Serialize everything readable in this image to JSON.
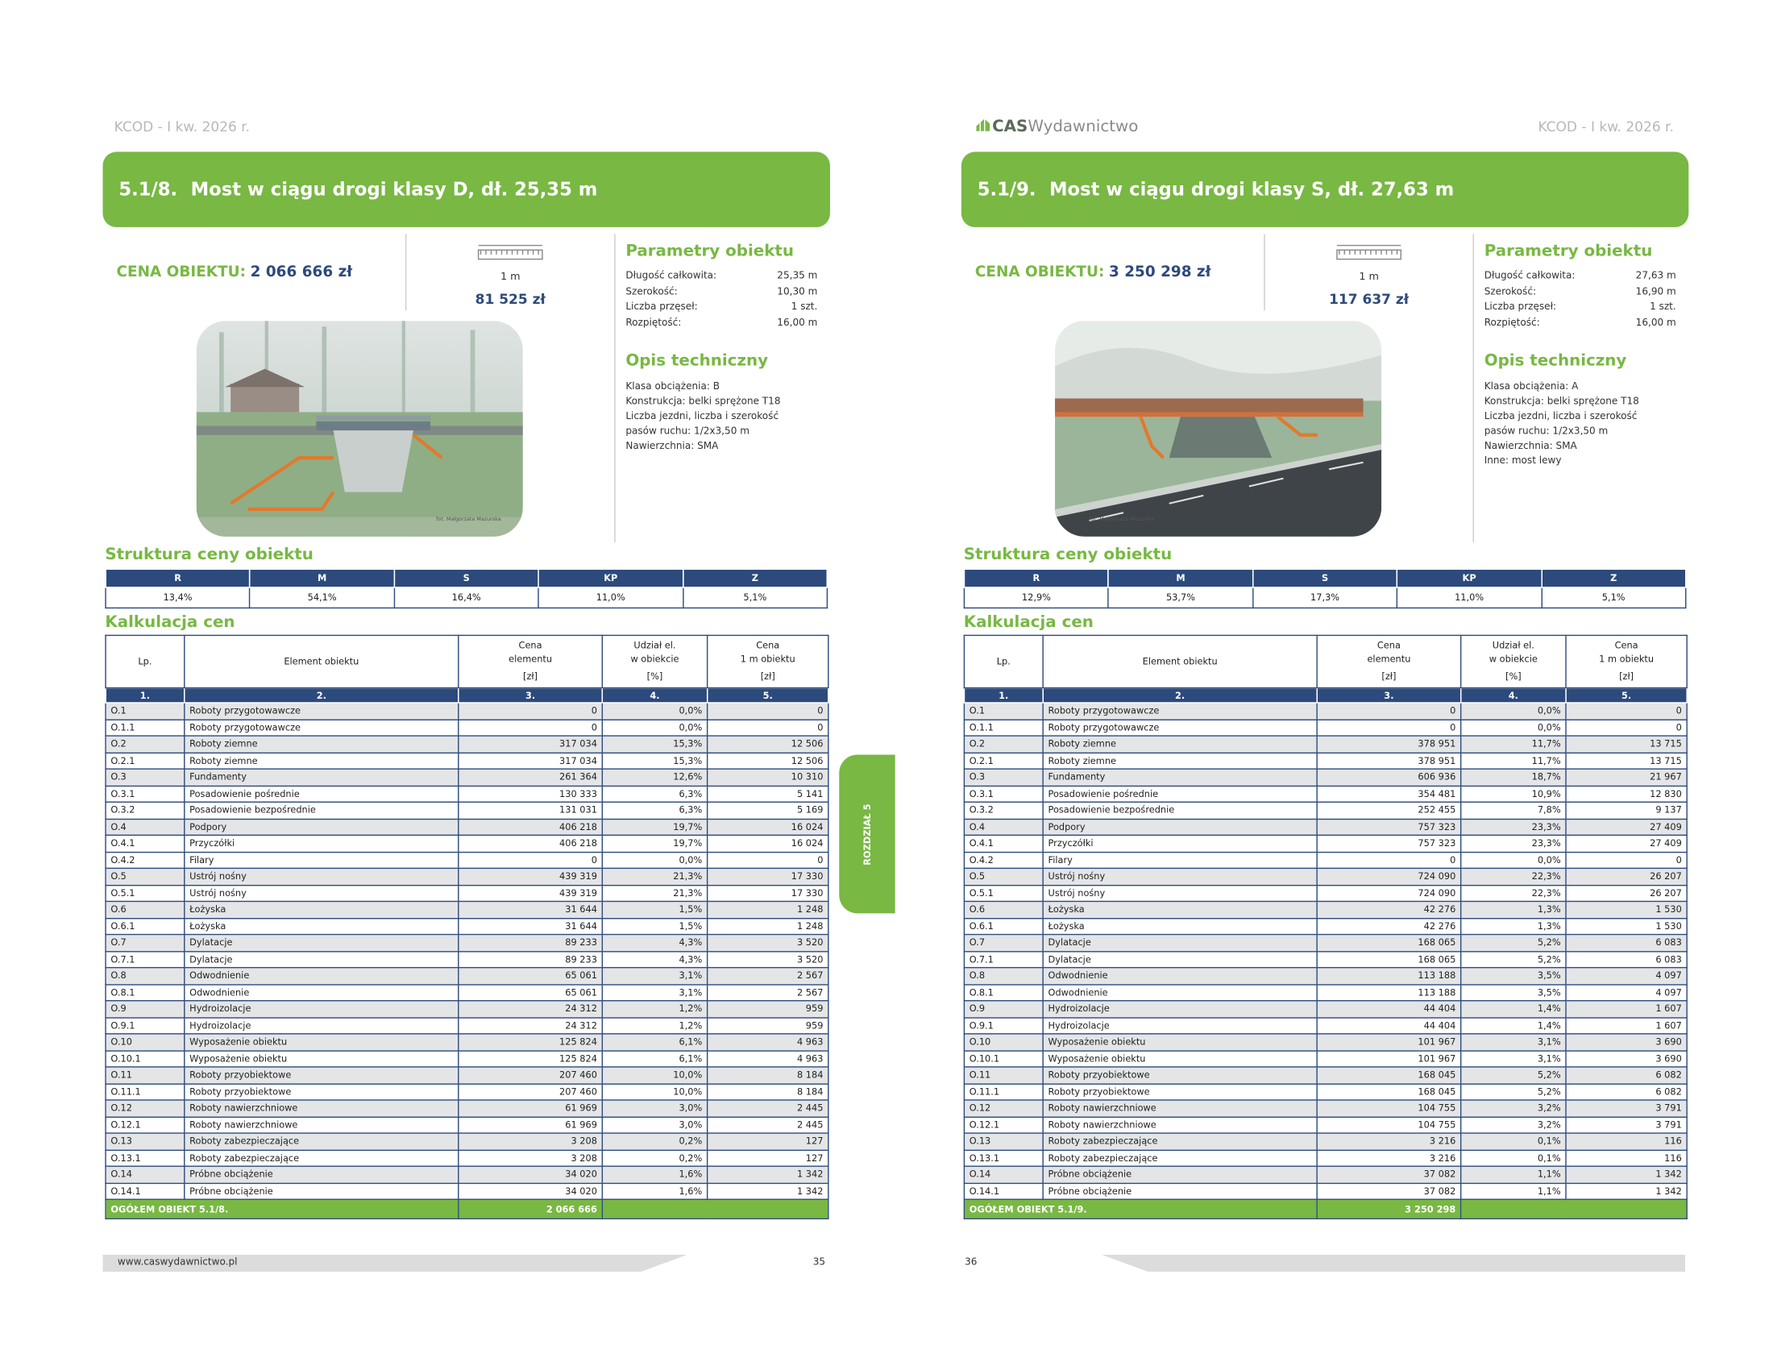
{
  "pages": [
    {
      "header": "KCOD - I kw. 2026 r.",
      "title": {
        "number": "5.1/8.",
        "text": "Most w ciągu drogi klasy D, dł. 25,35 m"
      },
      "price": {
        "label": "CENA OBIEKTU:",
        "value": "2 066 666 zł"
      },
      "meter": {
        "label": "1 m",
        "value": "81 525 zł"
      },
      "params_title": "Parametry obiektu",
      "params": [
        [
          "Długość całkowita:",
          "25,35 m"
        ],
        [
          "Szerokość:",
          "10,30 m"
        ],
        [
          "Liczba przęseł:",
          "1 szt."
        ],
        [
          "Rozpiętość:",
          "16,00 m"
        ]
      ],
      "desc_title": "Opis techniczny",
      "desc": [
        "Klasa obciążenia: B",
        "Konstrukcja: belki sprężone T18",
        "Liczba jezdni, liczba i szerokość",
        "pasów ruchu: 1/2x3,50 m",
        "Nawierzchnia: SMA"
      ],
      "photo_credit": "fot. Małgorzata Mazurska",
      "structure_title": "Struktura ceny obiektu",
      "structure": {
        "headers": [
          "R",
          "M",
          "S",
          "KP",
          "Z"
        ],
        "values": [
          "13,4%",
          "54,1%",
          "16,4%",
          "11,0%",
          "5,1%"
        ]
      },
      "calc_title": "Kalkulacja cen",
      "table": {
        "headers": [
          {
            "lines": [
              "Lp."
            ]
          },
          {
            "lines": [
              "Element obiektu"
            ]
          },
          {
            "lines": [
              "Cena",
              "elementu"
            ],
            "unit": "[zł]"
          },
          {
            "lines": [
              "Udział el.",
              "w obiekcie"
            ],
            "unit": "[%]"
          },
          {
            "lines": [
              "Cena",
              "1 m obiektu"
            ],
            "unit": "[zł]"
          }
        ],
        "numbers": [
          "1.",
          "2.",
          "3.",
          "4.",
          "5."
        ],
        "rows": [
          [
            "O.1",
            "Roboty przygotowawcze",
            "0",
            "0,0%",
            "0"
          ],
          [
            "O.1.1",
            "Roboty przygotowawcze",
            "0",
            "0,0%",
            "0"
          ],
          [
            "O.2",
            "Roboty ziemne",
            "317 034",
            "15,3%",
            "12 506"
          ],
          [
            "O.2.1",
            "Roboty ziemne",
            "317 034",
            "15,3%",
            "12 506"
          ],
          [
            "O.3",
            "Fundamenty",
            "261 364",
            "12,6%",
            "10 310"
          ],
          [
            "O.3.1",
            "Posadowienie pośrednie",
            "130 333",
            "6,3%",
            "5 141"
          ],
          [
            "O.3.2",
            "Posadowienie bezpośrednie",
            "131 031",
            "6,3%",
            "5 169"
          ],
          [
            "O.4",
            "Podpory",
            "406 218",
            "19,7%",
            "16 024"
          ],
          [
            "O.4.1",
            "Przyczółki",
            "406 218",
            "19,7%",
            "16 024"
          ],
          [
            "O.4.2",
            "Filary",
            "0",
            "0,0%",
            "0"
          ],
          [
            "O.5",
            "Ustrój nośny",
            "439 319",
            "21,3%",
            "17 330"
          ],
          [
            "O.5.1",
            "Ustrój nośny",
            "439 319",
            "21,3%",
            "17 330"
          ],
          [
            "O.6",
            "Łożyska",
            "31 644",
            "1,5%",
            "1 248"
          ],
          [
            "O.6.1",
            "Łożyska",
            "31 644",
            "1,5%",
            "1 248"
          ],
          [
            "O.7",
            "Dylatacje",
            "89 233",
            "4,3%",
            "3 520"
          ],
          [
            "O.7.1",
            "Dylatacje",
            "89 233",
            "4,3%",
            "3 520"
          ],
          [
            "O.8",
            "Odwodnienie",
            "65 061",
            "3,1%",
            "2 567"
          ],
          [
            "O.8.1",
            "Odwodnienie",
            "65 061",
            "3,1%",
            "2 567"
          ],
          [
            "O.9",
            "Hydroizolacje",
            "24 312",
            "1,2%",
            "959"
          ],
          [
            "O.9.1",
            "Hydroizolacje",
            "24 312",
            "1,2%",
            "959"
          ],
          [
            "O.10",
            "Wyposażenie obiektu",
            "125 824",
            "6,1%",
            "4 963"
          ],
          [
            "O.10.1",
            "Wyposażenie obiektu",
            "125 824",
            "6,1%",
            "4 963"
          ],
          [
            "O.11",
            "Roboty przyobiektowe",
            "207 460",
            "10,0%",
            "8 184"
          ],
          [
            "O.11.1",
            "Roboty przyobiektowe",
            "207 460",
            "10,0%",
            "8 184"
          ],
          [
            "O.12",
            "Roboty nawierzchniowe",
            "61 969",
            "3,0%",
            "2 445"
          ],
          [
            "O.12.1",
            "Roboty nawierzchniowe",
            "61 969",
            "3,0%",
            "2 445"
          ],
          [
            "O.13",
            "Roboty zabezpieczające",
            "3 208",
            "0,2%",
            "127"
          ],
          [
            "O.13.1",
            "Roboty zabezpieczające",
            "3 208",
            "0,2%",
            "127"
          ],
          [
            "O.14",
            "Próbne obciążenie",
            "34 020",
            "1,6%",
            "1 342"
          ],
          [
            "O.14.1",
            "Próbne obciążenie",
            "34 020",
            "1,6%",
            "1 342"
          ]
        ],
        "total": [
          "OGÓŁEM OBIEKT 5.1/8.",
          "2 066 666"
        ]
      },
      "side_tab": "ROZDZIAŁ 5",
      "footer_url": "www.caswydawnictwo.pl",
      "page_number": "35"
    },
    {
      "header": "KCOD - I kw. 2026 r.",
      "logo": {
        "brand": "CAS",
        "rest": "Wydawnictwo"
      },
      "title": {
        "number": "5.1/9.",
        "text": "Most w ciągu drogi klasy S, dł. 27,63 m"
      },
      "price": {
        "label": "CENA OBIEKTU:",
        "value": "3 250 298 zł"
      },
      "meter": {
        "label": "1 m",
        "value": "117 637 zł"
      },
      "params_title": "Parametry obiektu",
      "params": [
        [
          "Długość całkowita:",
          "27,63 m"
        ],
        [
          "Szerokość:",
          "16,90 m"
        ],
        [
          "Liczba przęseł:",
          "1 szt."
        ],
        [
          "Rozpiętość:",
          "16,00 m"
        ]
      ],
      "desc_title": "Opis techniczny",
      "desc": [
        "Klasa obciążenia: A",
        "Konstrukcja: belki sprężone T18",
        "Liczba jezdni, liczba i szerokość",
        "pasów ruchu: 1/2x3,50 m",
        "Nawierzchnia: SMA",
        "Inne: most lewy"
      ],
      "photo_credit": "fot. Małgorzata Mazurska",
      "structure_title": "Struktura ceny obiektu",
      "structure": {
        "headers": [
          "R",
          "M",
          "S",
          "KP",
          "Z"
        ],
        "values": [
          "12,9%",
          "53,7%",
          "17,3%",
          "11,0%",
          "5,1%"
        ]
      },
      "calc_title": "Kalkulacja cen",
      "table": {
        "headers": [
          {
            "lines": [
              "Lp."
            ]
          },
          {
            "lines": [
              "Element obiektu"
            ]
          },
          {
            "lines": [
              "Cena",
              "elementu"
            ],
            "unit": "[zł]"
          },
          {
            "lines": [
              "Udział el.",
              "w obiekcie"
            ],
            "unit": "[%]"
          },
          {
            "lines": [
              "Cena",
              "1 m obiektu"
            ],
            "unit": "[zł]"
          }
        ],
        "numbers": [
          "1.",
          "2.",
          "3.",
          "4.",
          "5."
        ],
        "rows": [
          [
            "O.1",
            "Roboty przygotowawcze",
            "0",
            "0,0%",
            "0"
          ],
          [
            "O.1.1",
            "Roboty przygotowawcze",
            "0",
            "0,0%",
            "0"
          ],
          [
            "O.2",
            "Roboty ziemne",
            "378 951",
            "11,7%",
            "13 715"
          ],
          [
            "O.2.1",
            "Roboty ziemne",
            "378 951",
            "11,7%",
            "13 715"
          ],
          [
            "O.3",
            "Fundamenty",
            "606 936",
            "18,7%",
            "21 967"
          ],
          [
            "O.3.1",
            "Posadowienie pośrednie",
            "354 481",
            "10,9%",
            "12 830"
          ],
          [
            "O.3.2",
            "Posadowienie bezpośrednie",
            "252 455",
            "7,8%",
            "9 137"
          ],
          [
            "O.4",
            "Podpory",
            "757 323",
            "23,3%",
            "27 409"
          ],
          [
            "O.4.1",
            "Przyczółki",
            "757 323",
            "23,3%",
            "27 409"
          ],
          [
            "O.4.2",
            "Filary",
            "0",
            "0,0%",
            "0"
          ],
          [
            "O.5",
            "Ustrój nośny",
            "724 090",
            "22,3%",
            "26 207"
          ],
          [
            "O.5.1",
            "Ustrój nośny",
            "724 090",
            "22,3%",
            "26 207"
          ],
          [
            "O.6",
            "Łożyska",
            "42 276",
            "1,3%",
            "1 530"
          ],
          [
            "O.6.1",
            "Łożyska",
            "42 276",
            "1,3%",
            "1 530"
          ],
          [
            "O.7",
            "Dylatacje",
            "168 065",
            "5,2%",
            "6 083"
          ],
          [
            "O.7.1",
            "Dylatacje",
            "168 065",
            "5,2%",
            "6 083"
          ],
          [
            "O.8",
            "Odwodnienie",
            "113 188",
            "3,5%",
            "4 097"
          ],
          [
            "O.8.1",
            "Odwodnienie",
            "113 188",
            "3,5%",
            "4 097"
          ],
          [
            "O.9",
            "Hydroizolacje",
            "44 404",
            "1,4%",
            "1 607"
          ],
          [
            "O.9.1",
            "Hydroizolacje",
            "44 404",
            "1,4%",
            "1 607"
          ],
          [
            "O.10",
            "Wyposażenie obiektu",
            "101 967",
            "3,1%",
            "3 690"
          ],
          [
            "O.10.1",
            "Wyposażenie obiektu",
            "101 967",
            "3,1%",
            "3 690"
          ],
          [
            "O.11",
            "Roboty przyobiektowe",
            "168 045",
            "5,2%",
            "6 082"
          ],
          [
            "O.11.1",
            "Roboty przyobiektowe",
            "168 045",
            "5,2%",
            "6 082"
          ],
          [
            "O.12",
            "Roboty nawierzchniowe",
            "104 755",
            "3,2%",
            "3 791"
          ],
          [
            "O.12.1",
            "Roboty nawierzchniowe",
            "104 755",
            "3,2%",
            "3 791"
          ],
          [
            "O.13",
            "Roboty zabezpieczające",
            "3 216",
            "0,1%",
            "116"
          ],
          [
            "O.13.1",
            "Roboty zabezpieczające",
            "3 216",
            "0,1%",
            "116"
          ],
          [
            "O.14",
            "Próbne obciążenie",
            "37 082",
            "1,1%",
            "1 342"
          ],
          [
            "O.14.1",
            "Próbne obciążenie",
            "37 082",
            "1,1%",
            "1 342"
          ]
        ],
        "total": [
          "OGÓŁEM OBIEKT 5.1/9.",
          "3 250 298"
        ]
      },
      "page_number": "36"
    }
  ]
}
